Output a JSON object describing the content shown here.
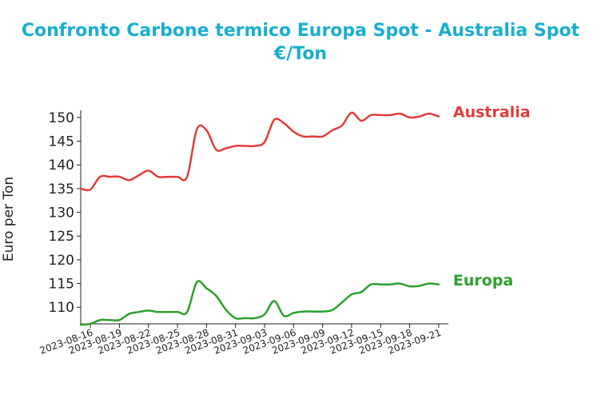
{
  "chart_data": {
    "type": "line",
    "title_line1": "Confronto Carbone termico Europa Spot - Australia Spot",
    "title_line2": "€/Ton",
    "ylabel": "Euro per Ton",
    "ylim": [
      106.5,
      151.5
    ],
    "yticks": [
      110,
      115,
      120,
      125,
      130,
      135,
      140,
      145,
      150
    ],
    "x_start": "2023-08-15",
    "x_end": "2023-09-22",
    "xticks": [
      "2023-08-16",
      "2023-08-19",
      "2023-08-22",
      "2023-08-25",
      "2023-08-28",
      "2023-08-31",
      "2023-09-03",
      "2023-09-06",
      "2023-09-09",
      "2023-09-12",
      "2023-09-15",
      "2023-09-18",
      "2023-09-21"
    ],
    "series": [
      {
        "name": "Australia",
        "color": "#e03c3c",
        "points": [
          [
            "2023-08-15",
            135.0
          ],
          [
            "2023-08-16",
            134.8
          ],
          [
            "2023-08-17",
            137.5
          ],
          [
            "2023-08-18",
            137.5
          ],
          [
            "2023-08-19",
            137.5
          ],
          [
            "2023-08-20",
            136.8
          ],
          [
            "2023-08-21",
            137.8
          ],
          [
            "2023-08-22",
            138.8
          ],
          [
            "2023-08-23",
            137.5
          ],
          [
            "2023-08-24",
            137.5
          ],
          [
            "2023-08-25",
            137.5
          ],
          [
            "2023-08-26",
            137.5
          ],
          [
            "2023-08-27",
            147.5
          ],
          [
            "2023-08-28",
            147.3
          ],
          [
            "2023-08-29",
            143.2
          ],
          [
            "2023-08-30",
            143.5
          ],
          [
            "2023-08-31",
            144.0
          ],
          [
            "2023-09-01",
            144.0
          ],
          [
            "2023-09-02",
            144.0
          ],
          [
            "2023-09-03",
            144.8
          ],
          [
            "2023-09-04",
            149.5
          ],
          [
            "2023-09-05",
            148.8
          ],
          [
            "2023-09-06",
            147.0
          ],
          [
            "2023-09-07",
            146.0
          ],
          [
            "2023-09-08",
            146.0
          ],
          [
            "2023-09-09",
            146.0
          ],
          [
            "2023-09-10",
            147.3
          ],
          [
            "2023-09-11",
            148.3
          ],
          [
            "2023-09-12",
            151.0
          ],
          [
            "2023-09-13",
            149.3
          ],
          [
            "2023-09-14",
            150.5
          ],
          [
            "2023-09-15",
            150.5
          ],
          [
            "2023-09-16",
            150.5
          ],
          [
            "2023-09-17",
            150.8
          ],
          [
            "2023-09-18",
            150.0
          ],
          [
            "2023-09-19",
            150.2
          ],
          [
            "2023-09-20",
            150.8
          ],
          [
            "2023-09-21",
            150.2
          ]
        ]
      },
      {
        "name": "Europa",
        "color": "#2ca02c",
        "points": [
          [
            "2023-08-15",
            106.3
          ],
          [
            "2023-08-16",
            106.5
          ],
          [
            "2023-08-17",
            107.3
          ],
          [
            "2023-08-18",
            107.3
          ],
          [
            "2023-08-19",
            107.3
          ],
          [
            "2023-08-20",
            108.6
          ],
          [
            "2023-08-21",
            109.0
          ],
          [
            "2023-08-22",
            109.3
          ],
          [
            "2023-08-23",
            109.0
          ],
          [
            "2023-08-24",
            109.0
          ],
          [
            "2023-08-25",
            109.0
          ],
          [
            "2023-08-26",
            109.0
          ],
          [
            "2023-08-27",
            115.3
          ],
          [
            "2023-08-28",
            114.0
          ],
          [
            "2023-08-29",
            112.4
          ],
          [
            "2023-08-30",
            109.5
          ],
          [
            "2023-08-31",
            107.7
          ],
          [
            "2023-09-01",
            107.7
          ],
          [
            "2023-09-02",
            107.7
          ],
          [
            "2023-09-03",
            108.5
          ],
          [
            "2023-09-04",
            111.3
          ],
          [
            "2023-09-05",
            108.2
          ],
          [
            "2023-09-06",
            108.8
          ],
          [
            "2023-09-07",
            109.1
          ],
          [
            "2023-09-08",
            109.1
          ],
          [
            "2023-09-09",
            109.1
          ],
          [
            "2023-09-10",
            109.4
          ],
          [
            "2023-09-11",
            111.0
          ],
          [
            "2023-09-12",
            112.7
          ],
          [
            "2023-09-13",
            113.2
          ],
          [
            "2023-09-14",
            114.8
          ],
          [
            "2023-09-15",
            114.8
          ],
          [
            "2023-09-16",
            114.8
          ],
          [
            "2023-09-17",
            115.0
          ],
          [
            "2023-09-18",
            114.4
          ],
          [
            "2023-09-19",
            114.5
          ],
          [
            "2023-09-20",
            115.0
          ],
          [
            "2023-09-21",
            114.8
          ]
        ]
      }
    ]
  }
}
